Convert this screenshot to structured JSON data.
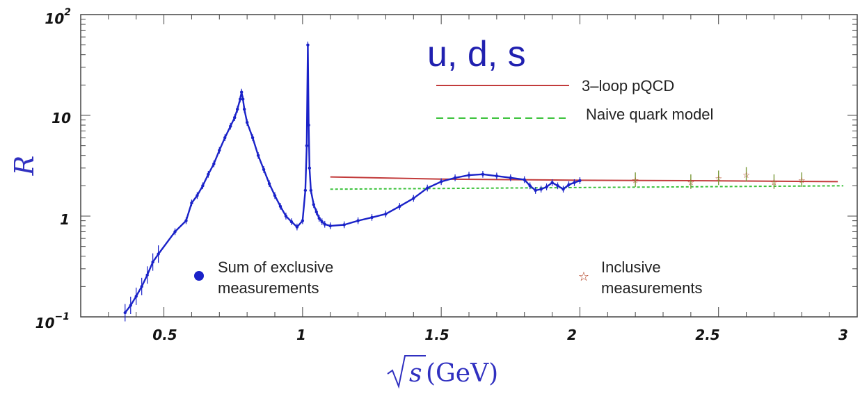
{
  "chart_data": {
    "type": "scatter",
    "title": "",
    "xlabel": "(GeV)",
    "ylabel": "R",
    "xlim": [
      0.2,
      3.0
    ],
    "ylim": [
      0.1,
      100
    ],
    "yscale": "log",
    "x_ticks": [
      "0.5",
      "1",
      "1.5",
      "2",
      "2.5",
      "3"
    ],
    "y_ticks": [
      {
        "base": "10",
        "exp": "−1",
        "value": 0.1
      },
      {
        "base": "1",
        "exp": "",
        "value": 1
      },
      {
        "base": "10",
        "exp": "",
        "value": 10
      },
      {
        "base": "10",
        "exp": "2",
        "value": 100
      }
    ],
    "annotation": "u, d, s",
    "legend": {
      "lines": [
        "3–loop pQCD",
        "Naive quark model"
      ],
      "points": [
        {
          "marker": "circle",
          "lines": [
            "Sum of exclusive",
            "measurements"
          ]
        },
        {
          "marker": "star",
          "lines": [
            "Inclusive",
            "measurements"
          ]
        }
      ]
    },
    "colors": {
      "exclusive": "#1a22c8",
      "inclusive": "#b03a1a",
      "pqcd": "#c23b3b",
      "naive": "#3bc23b",
      "accent": "#2020b0"
    },
    "series": [
      {
        "name": "Sum of exclusive measurements",
        "x": [
          0.36,
          0.38,
          0.4,
          0.42,
          0.44,
          0.46,
          0.48,
          0.54,
          0.58,
          0.6,
          0.62,
          0.64,
          0.66,
          0.68,
          0.7,
          0.72,
          0.74,
          0.755,
          0.765,
          0.775,
          0.78,
          0.785,
          0.79,
          0.8,
          0.82,
          0.84,
          0.86,
          0.88,
          0.9,
          0.92,
          0.94,
          0.96,
          0.98,
          1.0,
          1.01,
          1.015,
          1.019,
          1.022,
          1.025,
          1.03,
          1.04,
          1.05,
          1.06,
          1.07,
          1.08,
          1.1,
          1.15,
          1.2,
          1.25,
          1.3,
          1.35,
          1.4,
          1.45,
          1.5,
          1.55,
          1.6,
          1.65,
          1.7,
          1.75,
          1.8,
          1.82,
          1.84,
          1.86,
          1.88,
          1.9,
          1.92,
          1.94,
          1.96,
          1.98,
          2.0
        ],
        "y": [
          0.11,
          0.13,
          0.16,
          0.2,
          0.26,
          0.35,
          0.42,
          0.7,
          0.9,
          1.35,
          1.6,
          2.0,
          2.6,
          3.3,
          4.5,
          6.0,
          7.8,
          9.5,
          11.5,
          14.5,
          17.0,
          14.5,
          11.5,
          8.5,
          6.0,
          4.0,
          2.9,
          2.1,
          1.6,
          1.25,
          1.0,
          0.88,
          0.78,
          0.9,
          1.8,
          5.0,
          50.0,
          8.0,
          3.0,
          1.8,
          1.3,
          1.1,
          0.95,
          0.88,
          0.83,
          0.8,
          0.82,
          0.9,
          0.97,
          1.05,
          1.25,
          1.5,
          1.9,
          2.2,
          2.4,
          2.55,
          2.6,
          2.5,
          2.4,
          2.3,
          2.0,
          1.8,
          1.85,
          1.95,
          2.15,
          2.0,
          1.85,
          2.05,
          2.15,
          2.25
        ]
      },
      {
        "name": "Inclusive measurements",
        "x": [
          2.2,
          2.4,
          2.5,
          2.6,
          2.7,
          2.8
        ],
        "y": [
          2.3,
          2.2,
          2.4,
          2.6,
          2.2,
          2.3
        ]
      },
      {
        "name": "3–loop pQCD",
        "x": [
          1.1,
          1.5,
          2.0,
          2.5,
          2.93
        ],
        "y": [
          2.45,
          2.33,
          2.27,
          2.24,
          2.2
        ]
      },
      {
        "name": "Naive quark model",
        "x": [
          1.1,
          2.95
        ],
        "y": [
          1.85,
          2.0
        ]
      }
    ]
  }
}
